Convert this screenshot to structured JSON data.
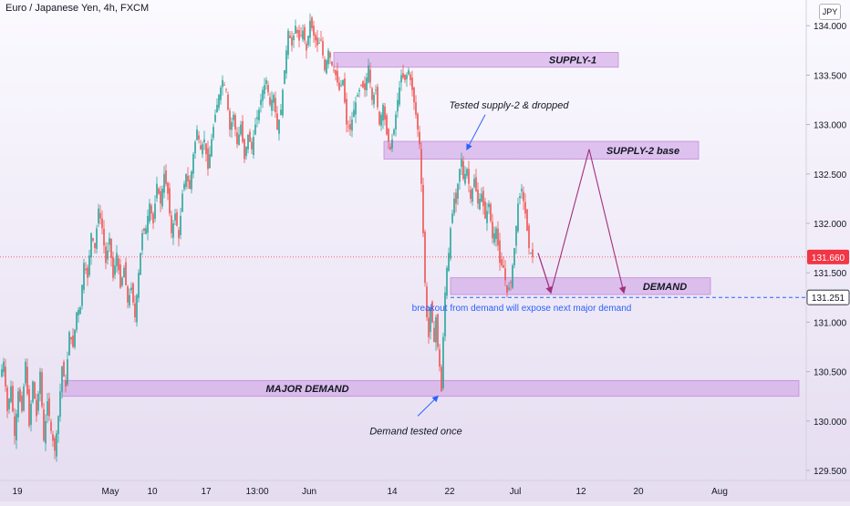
{
  "header": {
    "title": "Euro / Japanese Yen, 4h, FXCM",
    "currency_button": "JPY"
  },
  "colors": {
    "up": "#26a69a",
    "down": "#ef5350",
    "zone_fill": "#d1a8e6",
    "zone_stroke": "#c48bdc",
    "projection": "#a0307e",
    "annotation_arrow": "#2962ff",
    "current_price": "#f23645",
    "dashed_level": "#2962ff"
  },
  "chart_data": {
    "type": "candlestick",
    "title": "Euro / Japanese Yen, 4h, FXCM",
    "xlabel": "",
    "ylabel": "",
    "ylim": [
      129.4,
      134.35
    ],
    "y_ticks": [
      129.5,
      130.0,
      130.5,
      131.0,
      131.5,
      132.0,
      132.5,
      133.0,
      133.5,
      134.0
    ],
    "y_tick_labels": [
      "129.500",
      "130.000",
      "130.500",
      "131.000",
      "131.500",
      "132.000",
      "132.500",
      "133.000",
      "133.500",
      "134.000"
    ],
    "x_tick_labels": [
      "19",
      "May",
      "10",
      "17",
      "13:00",
      "Jun",
      "14",
      "22",
      "Jul",
      "12",
      "20",
      "Aug"
    ],
    "price_path": [
      [
        0,
        130.45
      ],
      [
        4,
        130.6
      ],
      [
        8,
        130.1
      ],
      [
        12,
        130.35
      ],
      [
        16,
        129.85
      ],
      [
        20,
        130.3
      ],
      [
        24,
        130.1
      ],
      [
        28,
        130.6
      ],
      [
        32,
        129.95
      ],
      [
        36,
        130.4
      ],
      [
        40,
        130.05
      ],
      [
        44,
        130.5
      ],
      [
        48,
        129.8
      ],
      [
        52,
        130.2
      ],
      [
        56,
        129.9
      ],
      [
        60,
        129.7
      ],
      [
        64,
        130.05
      ],
      [
        68,
        130.55
      ],
      [
        72,
        130.35
      ],
      [
        76,
        130.9
      ],
      [
        80,
        130.75
      ],
      [
        84,
        131.1
      ],
      [
        88,
        131.15
      ],
      [
        92,
        131.6
      ],
      [
        96,
        131.45
      ],
      [
        100,
        131.9
      ],
      [
        104,
        131.75
      ],
      [
        108,
        132.15
      ],
      [
        112,
        131.95
      ],
      [
        116,
        131.6
      ],
      [
        120,
        131.85
      ],
      [
        124,
        131.45
      ],
      [
        128,
        131.7
      ],
      [
        132,
        131.35
      ],
      [
        136,
        131.55
      ],
      [
        140,
        131.2
      ],
      [
        144,
        131.35
      ],
      [
        148,
        131.05
      ],
      [
        152,
        131.5
      ],
      [
        156,
        131.9
      ],
      [
        160,
        131.95
      ],
      [
        164,
        132.2
      ],
      [
        168,
        132.0
      ],
      [
        172,
        132.4
      ],
      [
        176,
        132.2
      ],
      [
        180,
        132.5
      ],
      [
        184,
        132.3
      ],
      [
        188,
        131.9
      ],
      [
        192,
        132.1
      ],
      [
        196,
        131.85
      ],
      [
        200,
        132.3
      ],
      [
        204,
        132.5
      ],
      [
        208,
        132.35
      ],
      [
        212,
        132.7
      ],
      [
        216,
        132.95
      ],
      [
        220,
        132.75
      ],
      [
        224,
        132.85
      ],
      [
        228,
        132.55
      ],
      [
        232,
        132.85
      ],
      [
        236,
        133.1
      ],
      [
        240,
        133.3
      ],
      [
        244,
        133.45
      ],
      [
        248,
        133.35
      ],
      [
        252,
        132.95
      ],
      [
        256,
        133.1
      ],
      [
        260,
        132.8
      ],
      [
        264,
        133.0
      ],
      [
        268,
        132.65
      ],
      [
        272,
        132.9
      ],
      [
        276,
        132.75
      ],
      [
        280,
        133.0
      ],
      [
        284,
        133.15
      ],
      [
        288,
        133.35
      ],
      [
        292,
        133.45
      ],
      [
        296,
        133.2
      ],
      [
        300,
        133.3
      ],
      [
        304,
        132.95
      ],
      [
        308,
        133.15
      ],
      [
        312,
        133.55
      ],
      [
        316,
        133.95
      ],
      [
        320,
        133.8
      ],
      [
        324,
        134.0
      ],
      [
        328,
        133.85
      ],
      [
        332,
        133.95
      ],
      [
        336,
        133.75
      ],
      [
        340,
        134.05
      ],
      [
        344,
        133.9
      ],
      [
        348,
        133.8
      ],
      [
        352,
        133.85
      ],
      [
        356,
        133.55
      ],
      [
        360,
        133.75
      ],
      [
        364,
        133.6
      ],
      [
        368,
        133.5
      ],
      [
        372,
        133.35
      ],
      [
        376,
        133.45
      ],
      [
        380,
        133.0
      ],
      [
        384,
        132.95
      ],
      [
        388,
        133.15
      ],
      [
        392,
        133.3
      ],
      [
        396,
        133.4
      ],
      [
        400,
        133.35
      ],
      [
        404,
        133.6
      ],
      [
        408,
        133.25
      ],
      [
        412,
        133.35
      ],
      [
        416,
        133.0
      ],
      [
        420,
        133.2
      ],
      [
        424,
        132.9
      ],
      [
        428,
        132.75
      ],
      [
        432,
        132.95
      ],
      [
        436,
        133.25
      ],
      [
        440,
        133.5
      ],
      [
        444,
        133.45
      ],
      [
        448,
        133.55
      ],
      [
        452,
        133.35
      ],
      [
        456,
        133.1
      ],
      [
        460,
        132.8
      ],
      [
        462,
        132.4
      ],
      [
        464,
        131.9
      ],
      [
        466,
        131.4
      ],
      [
        468,
        131.05
      ],
      [
        470,
        130.85
      ],
      [
        472,
        131.15
      ],
      [
        474,
        131.0
      ],
      [
        476,
        130.8
      ],
      [
        478,
        131.05
      ],
      [
        480,
        130.75
      ],
      [
        482,
        130.55
      ],
      [
        484,
        130.3
      ],
      [
        486,
        130.85
      ],
      [
        488,
        131.3
      ],
      [
        490,
        131.55
      ],
      [
        492,
        131.7
      ],
      [
        494,
        131.95
      ],
      [
        496,
        132.1
      ],
      [
        498,
        132.25
      ],
      [
        500,
        132.2
      ],
      [
        502,
        132.4
      ],
      [
        504,
        132.55
      ],
      [
        506,
        132.65
      ],
      [
        508,
        132.45
      ],
      [
        512,
        132.55
      ],
      [
        516,
        132.25
      ],
      [
        520,
        132.45
      ],
      [
        524,
        132.2
      ],
      [
        528,
        132.3
      ],
      [
        532,
        132.05
      ],
      [
        536,
        132.2
      ],
      [
        540,
        131.85
      ],
      [
        544,
        131.95
      ],
      [
        548,
        131.6
      ],
      [
        552,
        131.55
      ],
      [
        556,
        131.3
      ],
      [
        560,
        131.4
      ],
      [
        564,
        131.75
      ],
      [
        568,
        132.2
      ],
      [
        572,
        132.35
      ],
      [
        576,
        132.1
      ],
      [
        580,
        131.75
      ],
      [
        584,
        131.66
      ]
    ],
    "zones": [
      {
        "label": "SUPPLY-1",
        "x_start": 366,
        "x_end": 678,
        "y_top": 133.73,
        "y_bottom": 133.58
      },
      {
        "label": "SUPPLY-2 base",
        "x_start": 421,
        "x_end": 766,
        "y_top": 132.83,
        "y_bottom": 132.65
      },
      {
        "label": "DEMAND",
        "x_start": 494,
        "x_end": 779,
        "y_top": 131.45,
        "y_bottom": 131.28
      },
      {
        "label": "MAJOR DEMAND",
        "x_start": 68,
        "x_end": 876,
        "y_top": 130.41,
        "y_bottom": 130.25
      }
    ],
    "projection_path": [
      [
        590,
        131.7
      ],
      [
        604,
        131.3
      ],
      [
        646,
        132.75
      ],
      [
        684,
        131.3
      ]
    ],
    "annotations": [
      {
        "text": "Tested supply-2 & dropped",
        "x": 558,
        "y": 133.2,
        "arrow_from": [
          532,
          133.1
        ],
        "arrow_to": [
          512,
          132.75
        ]
      },
      {
        "text": "Demand tested once",
        "x": 456,
        "y": 129.9,
        "arrow_from": [
          458,
          130.05
        ],
        "arrow_to": [
          480,
          130.25
        ]
      },
      {
        "text": "breakout from demand will expose next major demand",
        "x": 572,
        "y": 131.15
      }
    ],
    "current_price": {
      "value": 131.66,
      "label": "131.660"
    },
    "level_line": {
      "value": 131.251,
      "label": "131.251",
      "x_start": 494
    },
    "grid": false,
    "legend": "none"
  }
}
